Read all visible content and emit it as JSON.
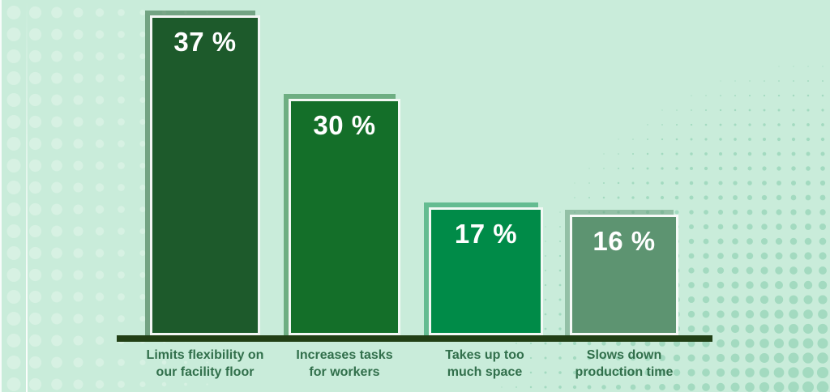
{
  "chart_data": {
    "type": "bar",
    "unit": "%",
    "categories": [
      "Limits flexibility on our facility floor",
      "Increases tasks for workers",
      "Takes up too much space",
      "Slows down production time"
    ],
    "values": [
      37,
      30,
      17,
      16
    ],
    "bars": [
      {
        "category": "Limits flexibility on\nour facility floor",
        "value": 37,
        "value_label": "37 %",
        "fill": "#1d5a2b"
      },
      {
        "category": "Increases tasks\nfor workers",
        "value": 30,
        "value_label": "30 %",
        "fill": "#146f29"
      },
      {
        "category": "Takes up too\nmuch space",
        "value": 17,
        "value_label": "17 %",
        "fill": "#008b48"
      },
      {
        "category": "Slows down\nproduction time",
        "value": 16,
        "value_label": "16 %",
        "fill": "#5d9471"
      }
    ],
    "legend": "none",
    "gridlines": "off",
    "value_labels_position": "inside-top"
  },
  "colors": {
    "background": "#c9ecda",
    "axis_line": "#213f15",
    "category_text": "#316f4b",
    "value_text": "#ffffff",
    "bar_border": "#ffffff",
    "dot_left": "#d8f2e3",
    "dot_right": "#9fd8bd"
  }
}
